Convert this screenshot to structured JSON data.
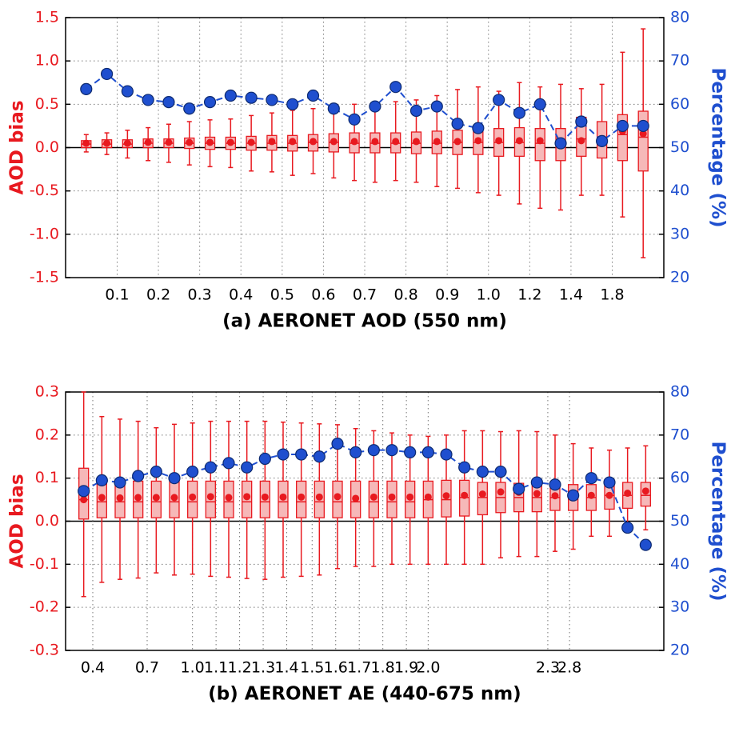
{
  "chart_data": [
    {
      "type": "box",
      "xlabel": "(a) AERONET AOD (550 nm)",
      "ylabel": "AOD bias",
      "y2label": "Percentage (%)",
      "color": "#e8191f",
      "box_fill": "#f6b8b8",
      "xlim": [
        0,
        29
      ],
      "xticks": [
        {
          "value": 2.5,
          "label": "0.1"
        },
        {
          "value": 4.5,
          "label": "0.2"
        },
        {
          "value": 6.5,
          "label": "0.3"
        },
        {
          "value": 8.5,
          "label": "0.4"
        },
        {
          "value": 10.5,
          "label": "0.5"
        },
        {
          "value": 12.5,
          "label": "0.6"
        },
        {
          "value": 14.5,
          "label": "0.7"
        },
        {
          "value": 16.5,
          "label": "0.8"
        },
        {
          "value": 18.5,
          "label": "0.9"
        },
        {
          "value": 20.5,
          "label": "1.0"
        },
        {
          "value": 22.5,
          "label": "1.2"
        },
        {
          "value": 24.5,
          "label": "1.4"
        },
        {
          "value": 26.5,
          "label": "1.8"
        }
      ],
      "ylim": [
        -1.5,
        1.5
      ],
      "yticks": [
        -1.5,
        {
          "value": -1,
          "label": "-1.0"
        },
        -0.5,
        {
          "value": 0,
          "label": "0.0"
        },
        0.5,
        {
          "value": 1,
          "label": "1.0"
        },
        1.5
      ],
      "y2lim": [
        20,
        80
      ],
      "y2ticks": [
        20,
        30,
        40,
        50,
        60,
        70,
        80
      ],
      "boxes": {
        "whislo": [
          -0.05,
          -0.08,
          -0.12,
          -0.15,
          -0.17,
          -0.2,
          -0.22,
          -0.23,
          -0.27,
          -0.28,
          -0.32,
          -0.3,
          -0.35,
          -0.38,
          -0.4,
          -0.38,
          -0.4,
          -0.45,
          -0.47,
          -0.52,
          -0.55,
          -0.65,
          -0.7,
          -0.72,
          -0.55,
          -0.55,
          -0.8,
          -1.27
        ],
        "q1": [
          0.0,
          0.0,
          0.0,
          0.0,
          0.0,
          -0.01,
          -0.02,
          -0.02,
          -0.03,
          -0.03,
          -0.04,
          -0.04,
          -0.05,
          -0.06,
          -0.06,
          -0.06,
          -0.07,
          -0.07,
          -0.08,
          -0.08,
          -0.1,
          -0.1,
          -0.15,
          -0.15,
          -0.1,
          -0.12,
          -0.15,
          -0.27
        ],
        "med": [
          0.04,
          0.04,
          0.04,
          0.05,
          0.05,
          0.05,
          0.05,
          0.05,
          0.05,
          0.05,
          0.05,
          0.06,
          0.06,
          0.05,
          0.05,
          0.05,
          0.05,
          0.05,
          0.06,
          0.06,
          0.06,
          0.06,
          0.05,
          0.05,
          0.1,
          0.1,
          0.15,
          0.12
        ],
        "q3": [
          0.08,
          0.09,
          0.09,
          0.1,
          0.1,
          0.11,
          0.12,
          0.12,
          0.13,
          0.14,
          0.14,
          0.15,
          0.16,
          0.17,
          0.17,
          0.17,
          0.18,
          0.19,
          0.2,
          0.2,
          0.22,
          0.23,
          0.22,
          0.22,
          0.35,
          0.3,
          0.38,
          0.42
        ],
        "whishi": [
          0.15,
          0.17,
          0.2,
          0.23,
          0.27,
          0.3,
          0.32,
          0.33,
          0.37,
          0.4,
          0.43,
          0.45,
          0.48,
          0.5,
          0.52,
          0.53,
          0.55,
          0.6,
          0.67,
          0.7,
          0.65,
          0.75,
          0.7,
          0.73,
          0.68,
          0.73,
          1.1,
          1.37
        ],
        "mean": [
          0.05,
          0.05,
          0.05,
          0.06,
          0.06,
          0.06,
          0.06,
          0.06,
          0.06,
          0.07,
          0.07,
          0.07,
          0.07,
          0.07,
          0.07,
          0.07,
          0.07,
          0.07,
          0.07,
          0.08,
          0.08,
          0.08,
          0.08,
          0.07,
          0.08,
          0.1,
          0.19,
          0.16
        ]
      },
      "line": {
        "axis": "y2",
        "color": "#1f4fcf",
        "values": [
          63.5,
          67,
          63,
          61,
          60.5,
          59,
          60.5,
          62,
          61.5,
          61,
          60,
          62,
          59,
          56.5,
          59.5,
          64,
          58.5,
          59.5,
          55.5,
          54.5,
          61,
          58,
          60,
          51,
          56,
          51.5,
          55,
          55
        ]
      }
    },
    {
      "type": "box",
      "xlabel": "(b) AERONET AE (440-675 nm)",
      "ylabel": "AOD bias",
      "y2label": "Percentage (%)",
      "color": "#e8191f",
      "box_fill": "#f6b8b8",
      "xlim": [
        0,
        33
      ],
      "xticks": [
        {
          "value": 1.5,
          "label": "0.4"
        },
        {
          "value": 4.5,
          "label": "0.7"
        },
        {
          "value": 7,
          "label": "1.0"
        },
        {
          "value": 8.3,
          "label": "1.1"
        },
        {
          "value": 9.6,
          "label": "1.2"
        },
        {
          "value": 10.9,
          "label": "1.3"
        },
        {
          "value": 12.2,
          "label": "1.4"
        },
        {
          "value": 13.6,
          "label": "1.5"
        },
        {
          "value": 14.9,
          "label": "1.6"
        },
        {
          "value": 16.2,
          "label": "1.7"
        },
        {
          "value": 17.5,
          "label": "1.8"
        },
        {
          "value": 18.8,
          "label": "1.9"
        },
        {
          "value": 20,
          "label": "2.0"
        },
        {
          "value": 26.6,
          "label": "2.3"
        },
        {
          "value": 27.8,
          "label": "2.8"
        }
      ],
      "ylim": [
        -0.3,
        0.3
      ],
      "yticks": [
        -0.3,
        -0.2,
        -0.1,
        {
          "value": 0,
          "label": "0.0"
        },
        0.1,
        0.2,
        0.3
      ],
      "y2lim": [
        20,
        80
      ],
      "y2ticks": [
        20,
        30,
        40,
        50,
        60,
        70,
        80
      ],
      "boxes": {
        "whislo": [
          -0.175,
          -0.142,
          -0.135,
          -0.132,
          -0.12,
          -0.125,
          -0.123,
          -0.128,
          -0.13,
          -0.133,
          -0.135,
          -0.13,
          -0.128,
          -0.125,
          -0.11,
          -0.105,
          -0.105,
          -0.1,
          -0.1,
          -0.1,
          -0.1,
          -0.1,
          -0.1,
          -0.085,
          -0.082,
          -0.082,
          -0.07,
          -0.065,
          -0.035,
          -0.035,
          -0.01,
          -0.02
        ],
        "q1": [
          0.005,
          0.008,
          0.008,
          0.008,
          0.008,
          0.008,
          0.008,
          0.008,
          0.008,
          0.008,
          0.008,
          0.008,
          0.008,
          0.008,
          0.008,
          0.008,
          0.008,
          0.008,
          0.008,
          0.008,
          0.01,
          0.012,
          0.015,
          0.02,
          0.022,
          0.022,
          0.025,
          0.025,
          0.025,
          0.028,
          0.03,
          0.035
        ],
        "med": [
          0.05,
          0.045,
          0.045,
          0.045,
          0.045,
          0.045,
          0.045,
          0.045,
          0.045,
          0.045,
          0.045,
          0.045,
          0.045,
          0.045,
          0.045,
          0.045,
          0.045,
          0.045,
          0.045,
          0.05,
          0.05,
          0.055,
          0.055,
          0.055,
          0.055,
          0.055,
          0.055,
          0.055,
          0.055,
          0.06,
          0.06,
          0.06
        ],
        "q3": [
          0.123,
          0.09,
          0.092,
          0.093,
          0.093,
          0.093,
          0.093,
          0.093,
          0.093,
          0.093,
          0.093,
          0.093,
          0.093,
          0.093,
          0.093,
          0.093,
          0.093,
          0.093,
          0.093,
          0.093,
          0.095,
          0.095,
          0.09,
          0.09,
          0.088,
          0.085,
          0.085,
          0.085,
          0.085,
          0.09,
          0.09,
          0.09
        ],
        "whishi": [
          0.3,
          0.243,
          0.237,
          0.232,
          0.217,
          0.225,
          0.228,
          0.232,
          0.232,
          0.232,
          0.232,
          0.23,
          0.228,
          0.226,
          0.224,
          0.215,
          0.21,
          0.205,
          0.2,
          0.197,
          0.2,
          0.21,
          0.21,
          0.208,
          0.21,
          0.208,
          0.2,
          0.18,
          0.17,
          0.165,
          0.17,
          0.175
        ],
        "mean": [
          0.05,
          0.055,
          0.054,
          0.055,
          0.055,
          0.055,
          0.056,
          0.057,
          0.055,
          0.057,
          0.056,
          0.056,
          0.056,
          0.056,
          0.057,
          0.053,
          0.056,
          0.056,
          0.056,
          0.056,
          0.059,
          0.06,
          0.063,
          0.068,
          0.067,
          0.064,
          0.059,
          0.06,
          0.06,
          0.06,
          0.065,
          0.07
        ]
      },
      "line": {
        "axis": "y2",
        "color": "#1f4fcf",
        "values": [
          57,
          59.5,
          59,
          60.5,
          61.5,
          60,
          61.5,
          62.5,
          63.5,
          62.5,
          64.5,
          65.5,
          65.5,
          65,
          68,
          66,
          66.5,
          66.5,
          66,
          66,
          65.5,
          62.5,
          61.5,
          61.5,
          57.5,
          59,
          58.5,
          56,
          60,
          59,
          48.5,
          44.5
        ]
      }
    }
  ]
}
